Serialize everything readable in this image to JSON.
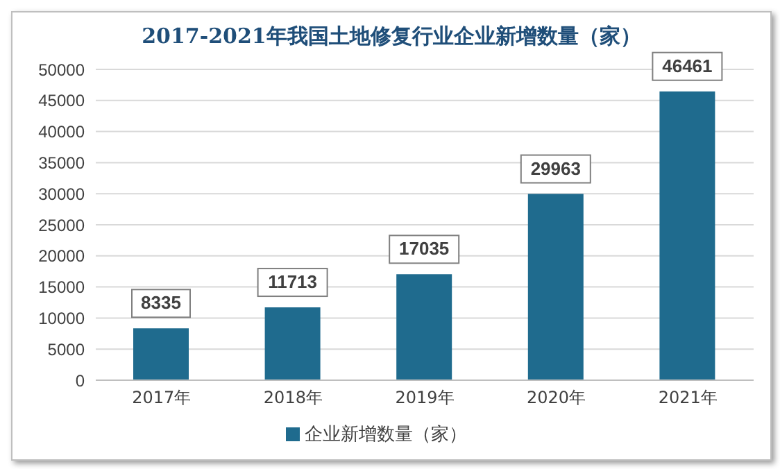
{
  "chart_data": {
    "type": "bar",
    "title": "2017-2021年我国土地修复行业企业新增数量（家）",
    "categories": [
      "2017年",
      "2018年",
      "2019年",
      "2020年",
      "2021年"
    ],
    "series": [
      {
        "name": "企业新增数量（家）",
        "color": "#1f6b8e",
        "values": [
          8335,
          11713,
          17035,
          29963,
          46461
        ]
      }
    ],
    "ylim": [
      0,
      50000
    ],
    "yticks": [
      0,
      5000,
      10000,
      15000,
      20000,
      25000,
      30000,
      35000,
      40000,
      45000,
      50000
    ],
    "grid": "y",
    "legend": "bottom",
    "data_labels": true
  }
}
